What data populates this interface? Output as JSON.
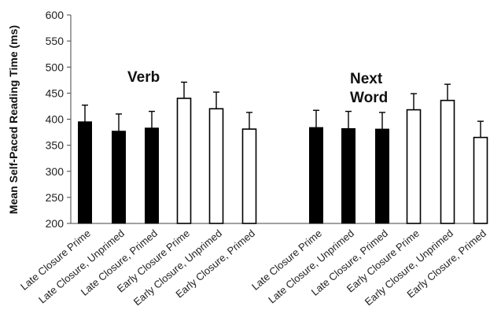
{
  "chart_data": {
    "type": "bar",
    "ylabel": "Mean Self-Paced Reading Time (ms)",
    "xlabel": "",
    "ylim": [
      200,
      600
    ],
    "yticks": [
      200,
      250,
      300,
      350,
      400,
      450,
      500,
      550,
      600
    ],
    "grid": false,
    "groups": [
      {
        "label_lines": [
          "Verb"
        ],
        "categories": [
          "Late Closure Prime",
          "Late Closure, Unprimed",
          "Late Closure, Primed",
          "Early Closure Prime",
          "Early Closure, Unprimed",
          "Early Closure, Primed"
        ],
        "values": [
          395,
          377,
          383,
          440,
          420,
          381
        ],
        "error_upper": [
          427,
          410,
          415,
          471,
          452,
          413
        ],
        "fill": [
          "black",
          "black",
          "black",
          "white",
          "white",
          "white"
        ]
      },
      {
        "label_lines": [
          "Next",
          "Word"
        ],
        "categories": [
          "Late Closure Prime",
          "Late Closure, Unprimed",
          "Late Closure, Primed",
          "Early Closure Prime",
          "Early Closure, Unprimed",
          "Early Closure, Primed"
        ],
        "values": [
          384,
          382,
          381,
          418,
          436,
          365
        ],
        "error_upper": [
          417,
          415,
          413,
          449,
          467,
          396
        ],
        "fill": [
          "black",
          "black",
          "black",
          "white",
          "white",
          "white"
        ]
      }
    ]
  }
}
